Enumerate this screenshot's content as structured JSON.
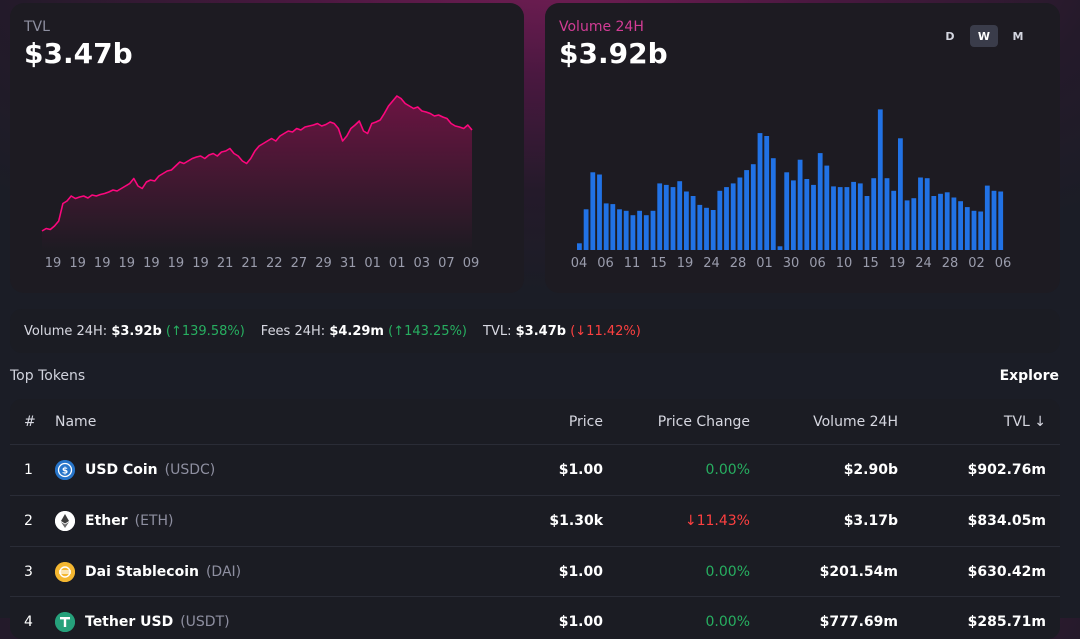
{
  "tvl": {
    "label": "TVL",
    "value": "$3.47b",
    "x_labels": [
      "19",
      "19",
      "19",
      "19",
      "19",
      "19",
      "19",
      "21",
      "21",
      "22",
      "27",
      "29",
      "31",
      "01",
      "01",
      "03",
      "07",
      "09"
    ],
    "series": [
      0.4,
      0.45,
      0.43,
      0.5,
      0.6,
      0.95,
      1.0,
      1.1,
      1.05,
      1.08,
      1.1,
      1.06,
      1.12,
      1.1,
      1.13,
      1.15,
      1.18,
      1.22,
      1.2,
      1.25,
      1.3,
      1.35,
      1.45,
      1.3,
      1.25,
      1.38,
      1.42,
      1.4,
      1.5,
      1.55,
      1.6,
      1.62,
      1.7,
      1.78,
      1.75,
      1.8,
      1.85,
      1.88,
      1.9,
      1.85,
      1.92,
      1.95,
      1.9,
      1.98,
      2.0,
      2.05,
      1.95,
      1.9,
      1.8,
      1.75,
      1.85,
      2.0,
      2.1,
      2.15,
      2.2,
      2.25,
      2.2,
      2.3,
      2.35,
      2.4,
      2.38,
      2.45,
      2.42,
      2.48,
      2.5,
      2.52,
      2.55,
      2.5,
      2.53,
      2.58,
      2.55,
      2.45,
      2.2,
      2.3,
      2.45,
      2.52,
      2.6,
      2.4,
      2.35,
      2.55,
      2.58,
      2.62,
      2.75,
      2.9,
      3.0,
      3.1,
      3.05,
      2.95,
      2.9,
      2.85,
      2.88,
      2.8,
      2.78,
      2.75,
      2.7,
      2.72,
      2.68,
      2.65,
      2.55,
      2.5,
      2.48,
      2.45,
      2.52,
      2.42
    ]
  },
  "volume": {
    "label": "Volume 24H",
    "value": "$3.92b",
    "periods": [
      "D",
      "W",
      "M"
    ],
    "active_period": "W",
    "x_labels": [
      "04",
      "06",
      "11",
      "15",
      "19",
      "24",
      "28",
      "01",
      "30",
      "06",
      "10",
      "15",
      "19",
      "24",
      "28",
      "02",
      "06"
    ],
    "bars": [
      0.09,
      0.55,
      1.05,
      1.02,
      0.63,
      0.62,
      0.55,
      0.53,
      0.47,
      0.53,
      0.47,
      0.53,
      0.9,
      0.88,
      0.85,
      0.93,
      0.79,
      0.73,
      0.61,
      0.57,
      0.54,
      0.8,
      0.85,
      0.9,
      0.98,
      1.08,
      1.16,
      1.58,
      1.54,
      1.24,
      0.05,
      1.05,
      0.94,
      1.22,
      0.96,
      0.88,
      1.31,
      1.14,
      0.86,
      0.85,
      0.85,
      0.92,
      0.9,
      0.73,
      0.97,
      1.9,
      0.97,
      0.8,
      1.51,
      0.67,
      0.7,
      0.98,
      0.97,
      0.73,
      0.76,
      0.78,
      0.71,
      0.66,
      0.58,
      0.53,
      0.52,
      0.87,
      0.8,
      0.79
    ]
  },
  "stats": {
    "volume_label": "Volume 24H:",
    "volume_value": "$3.92b",
    "volume_change": "(↑139.58%)",
    "fees_label": "Fees 24H:",
    "fees_value": "$4.29m",
    "fees_change": "(↑143.25%)",
    "tvl_label": "TVL:",
    "tvl_value": "$3.47b",
    "tvl_change": "(↓11.42%)"
  },
  "top_tokens": {
    "title": "Top Tokens",
    "explore": "Explore",
    "headers": {
      "idx": "#",
      "name": "Name",
      "price": "Price",
      "change": "Price Change",
      "volume": "Volume 24H",
      "tvl": "TVL ↓"
    },
    "rows": [
      {
        "idx": "1",
        "name": "USD Coin",
        "symbol": "(USDC)",
        "price": "$1.00",
        "change": "0.00%",
        "volume": "$2.90b",
        "tvl": "$902.76m",
        "icon": "usdc-icon",
        "color": "#2775ca"
      },
      {
        "idx": "2",
        "name": "Ether",
        "symbol": "(ETH)",
        "price": "$1.30k",
        "change": "↓11.43%",
        "volume": "$3.17b",
        "tvl": "$834.05m",
        "icon": "eth-icon",
        "color": "#ffffff"
      },
      {
        "idx": "3",
        "name": "Dai Stablecoin",
        "symbol": "(DAI)",
        "price": "$1.00",
        "change": "0.00%",
        "volume": "$201.54m",
        "tvl": "$630.42m",
        "icon": "dai-icon",
        "color": "#f4b731"
      },
      {
        "idx": "4",
        "name": "Tether USD",
        "symbol": "(USDT)",
        "price": "$1.00",
        "change": "0.00%",
        "volume": "$777.69m",
        "tvl": "$285.71m",
        "icon": "usdt-icon",
        "color": "#26a17b"
      }
    ]
  },
  "colors": {
    "accent_pink": "#fc077d",
    "bar_blue": "#2172e5",
    "up_green": "#27ae60",
    "down_red": "#fd4040"
  }
}
